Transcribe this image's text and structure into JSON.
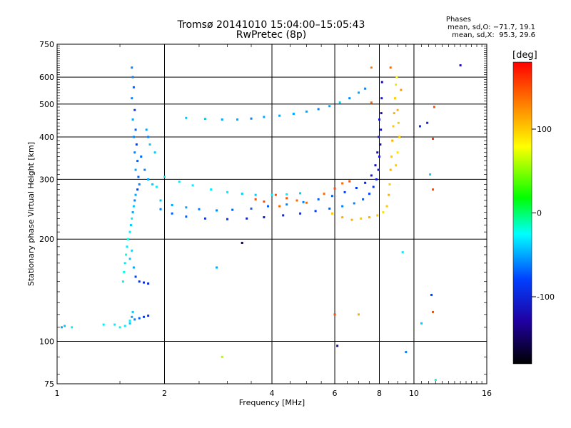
{
  "chart_data": {
    "type": "scatter",
    "title": "Tromsø 20141010 15:04:00–15:05:43",
    "subtitle": "RwPretec (8p)",
    "xlabel": "Frequency [MHz]",
    "ylabel": "Stationary phase Virtual Height [km]",
    "x_scale": "log",
    "y_scale": "log",
    "xlim": [
      1,
      16
    ],
    "ylim": [
      75,
      750
    ],
    "x_ticks": [
      1,
      2,
      4,
      6,
      8,
      10,
      16
    ],
    "y_ticks": [
      75,
      100,
      200,
      300,
      400,
      500,
      600,
      750
    ],
    "grid": true,
    "stats": {
      "heading": "Phases",
      "line_o": "mean, sd,O: −71.7, 19.1",
      "line_x": "mean, sd,X:  95.3, 29.6"
    },
    "colorbar": {
      "label": "[deg]",
      "ticks": [
        100,
        0,
        -100
      ],
      "range": [
        -180,
        180
      ],
      "colors": [
        "#ff0000",
        "#ff8000",
        "#ffff00",
        "#00ff00",
        "#00ffff",
        "#0040ff",
        "#2000a0",
        "#000000"
      ]
    },
    "series": [
      {
        "points": [
          [
            1.62,
            640,
            -60
          ],
          [
            1.63,
            600,
            -60
          ],
          [
            1.64,
            560,
            -70
          ],
          [
            1.62,
            520,
            -60
          ],
          [
            1.65,
            480,
            -80
          ],
          [
            1.63,
            450,
            -50
          ],
          [
            1.66,
            420,
            -70
          ],
          [
            1.64,
            400,
            -60
          ],
          [
            1.67,
            380,
            -80
          ],
          [
            1.65,
            360,
            -60
          ],
          [
            1.68,
            340,
            -70
          ],
          [
            1.66,
            320,
            -50
          ],
          [
            1.69,
            305,
            -70
          ],
          [
            1.7,
            290,
            -60
          ],
          [
            1.68,
            280,
            -80
          ],
          [
            1.66,
            270,
            -50
          ],
          [
            1.65,
            260,
            -60
          ],
          [
            1.64,
            250,
            -40
          ],
          [
            1.63,
            240,
            -50
          ],
          [
            1.62,
            230,
            -30
          ],
          [
            1.61,
            220,
            -40
          ],
          [
            1.6,
            210,
            -30
          ],
          [
            1.58,
            200,
            -20
          ],
          [
            1.57,
            190,
            -30
          ],
          [
            1.56,
            180,
            -20
          ],
          [
            1.55,
            170,
            -30
          ],
          [
            1.54,
            160,
            -20
          ],
          [
            1.53,
            150,
            -30
          ],
          [
            1.6,
            175,
            -40
          ],
          [
            1.62,
            185,
            -35
          ],
          [
            1.64,
            165,
            -50
          ],
          [
            1.66,
            155,
            -80
          ],
          [
            1.7,
            150,
            -90
          ],
          [
            1.75,
            149,
            -95
          ],
          [
            1.8,
            148,
            -100
          ],
          [
            1.72,
            350,
            -70
          ],
          [
            1.76,
            320,
            -60
          ],
          [
            1.8,
            300,
            -50
          ],
          [
            1.85,
            290,
            -40
          ],
          [
            1.9,
            285,
            -30
          ],
          [
            1.8,
            400,
            -60
          ],
          [
            1.78,
            420,
            -50
          ],
          [
            1.82,
            380,
            -40
          ],
          [
            1.88,
            360,
            -40
          ],
          [
            1.45,
            112,
            -30
          ],
          [
            1.5,
            110,
            -20
          ],
          [
            1.55,
            111,
            -30
          ],
          [
            1.6,
            113,
            -40
          ],
          [
            1.62,
            118,
            -50
          ],
          [
            1.65,
            116,
            -60
          ],
          [
            1.7,
            117,
            -70
          ],
          [
            1.75,
            118,
            -80
          ],
          [
            1.8,
            119,
            -90
          ],
          [
            1.63,
            122,
            -40
          ],
          [
            1.6,
            115,
            -30
          ],
          [
            1.35,
            112,
            -30
          ],
          [
            1.05,
            111,
            -40
          ],
          [
            1.1,
            110,
            -30
          ],
          [
            1.95,
            245,
            -60
          ],
          [
            2.1,
            238,
            -70
          ],
          [
            2.3,
            233,
            -70
          ],
          [
            2.6,
            230,
            -80
          ],
          [
            3.0,
            229,
            -90
          ],
          [
            3.4,
            230,
            -100
          ],
          [
            3.8,
            232,
            -110
          ],
          [
            4.3,
            235,
            -100
          ],
          [
            4.8,
            238,
            -90
          ],
          [
            5.3,
            242,
            -80
          ],
          [
            5.8,
            246,
            -70
          ],
          [
            6.3,
            250,
            -60
          ],
          [
            6.8,
            255,
            -60
          ],
          [
            7.2,
            262,
            -70
          ],
          [
            7.5,
            272,
            -80
          ],
          [
            7.7,
            285,
            -90
          ],
          [
            7.85,
            300,
            -100
          ],
          [
            7.95,
            320,
            -110
          ],
          [
            8.0,
            350,
            -110
          ],
          [
            8.05,
            380,
            -120
          ],
          [
            8.08,
            420,
            -110
          ],
          [
            8.1,
            470,
            -120
          ],
          [
            8.12,
            520,
            -110
          ],
          [
            8.14,
            580,
            -120
          ],
          [
            1.95,
            260,
            -40
          ],
          [
            2.1,
            252,
            -50
          ],
          [
            2.3,
            248,
            -50
          ],
          [
            2.5,
            245,
            -60
          ],
          [
            2.8,
            243,
            -60
          ],
          [
            3.1,
            244,
            -70
          ],
          [
            3.5,
            246,
            -70
          ],
          [
            3.9,
            250,
            -70
          ],
          [
            4.4,
            253,
            -60
          ],
          [
            4.9,
            257,
            -60
          ],
          [
            5.4,
            262,
            -70
          ],
          [
            5.9,
            268,
            -70
          ],
          [
            6.4,
            275,
            -80
          ],
          [
            6.9,
            283,
            -90
          ],
          [
            7.3,
            293,
            -100
          ],
          [
            7.6,
            308,
            -110
          ],
          [
            7.8,
            330,
            -120
          ],
          [
            7.9,
            360,
            -120
          ],
          [
            7.97,
            400,
            -110
          ],
          [
            8.0,
            450,
            -110
          ],
          [
            2.0,
            305,
            -30
          ],
          [
            2.2,
            295,
            -30
          ],
          [
            2.4,
            288,
            -30
          ],
          [
            2.7,
            280,
            -30
          ],
          [
            3.0,
            275,
            -30
          ],
          [
            3.3,
            272,
            -40
          ],
          [
            3.6,
            270,
            -40
          ],
          [
            4.0,
            270,
            -30
          ],
          [
            4.4,
            271,
            -30
          ],
          [
            4.8,
            273,
            -40
          ],
          [
            2.3,
            455,
            -40
          ],
          [
            2.6,
            452,
            -40
          ],
          [
            2.9,
            450,
            -50
          ],
          [
            3.2,
            450,
            -50
          ],
          [
            3.5,
            453,
            -60
          ],
          [
            3.8,
            458,
            -50
          ],
          [
            4.2,
            462,
            -50
          ],
          [
            4.6,
            468,
            -50
          ],
          [
            5.0,
            475,
            -50
          ],
          [
            5.4,
            483,
            -60
          ],
          [
            5.8,
            493,
            -50
          ],
          [
            6.2,
            505,
            -40
          ],
          [
            6.6,
            520,
            -60
          ],
          [
            7.0,
            540,
            -50
          ],
          [
            7.3,
            555,
            -60
          ],
          [
            8.4,
            250,
            100
          ],
          [
            8.5,
            270,
            110
          ],
          [
            8.55,
            290,
            100
          ],
          [
            8.6,
            320,
            110
          ],
          [
            8.65,
            350,
            100
          ],
          [
            8.7,
            390,
            110
          ],
          [
            8.75,
            430,
            100
          ],
          [
            8.8,
            470,
            110
          ],
          [
            8.85,
            520,
            100
          ],
          [
            8.9,
            570,
            90
          ],
          [
            8.95,
            600,
            80
          ],
          [
            8.2,
            240,
            90
          ],
          [
            7.9,
            235,
            100
          ],
          [
            7.5,
            232,
            110
          ],
          [
            7.1,
            230,
            100
          ],
          [
            6.7,
            228,
            110
          ],
          [
            6.3,
            232,
            110
          ],
          [
            5.9,
            238,
            100
          ],
          [
            9.0,
            480,
            110
          ],
          [
            9.05,
            440,
            100
          ],
          [
            9.1,
            400,
            100
          ],
          [
            9.0,
            360,
            90
          ],
          [
            8.9,
            330,
            100
          ],
          [
            4.1,
            270,
            150
          ],
          [
            4.4,
            264,
            150
          ],
          [
            4.7,
            260,
            140
          ],
          [
            5.0,
            256,
            140
          ],
          [
            4.2,
            250,
            140
          ],
          [
            3.8,
            258,
            150
          ],
          [
            3.6,
            262,
            150
          ],
          [
            5.6,
            272,
            140
          ],
          [
            6.0,
            282,
            150
          ],
          [
            6.3,
            292,
            140
          ],
          [
            6.6,
            296,
            150
          ],
          [
            1.03,
            110,
            -50
          ],
          [
            2.8,
            165,
            -50
          ],
          [
            2.9,
            90,
            60
          ],
          [
            3.3,
            195,
            -150
          ],
          [
            6.0,
            120,
            150
          ],
          [
            6.1,
            97,
            -130
          ],
          [
            7.0,
            120,
            110
          ],
          [
            9.3,
            183,
            -30
          ],
          [
            9.5,
            93,
            -60
          ],
          [
            10.5,
            113,
            -40
          ],
          [
            11.2,
            137,
            -80
          ],
          [
            11.3,
            122,
            150
          ],
          [
            11.3,
            395,
            160
          ],
          [
            11.5,
            77,
            -20
          ],
          [
            13.5,
            650,
            -120
          ],
          [
            11.4,
            490,
            150
          ],
          [
            10.9,
            440,
            -100
          ],
          [
            10.4,
            430,
            -90
          ],
          [
            11.3,
            280,
            150
          ],
          [
            11.1,
            310,
            -40
          ],
          [
            9.2,
            550,
            120
          ],
          [
            7.6,
            640,
            130
          ],
          [
            7.6,
            505,
            140
          ],
          [
            8.6,
            640,
            140
          ]
        ]
      }
    ]
  }
}
